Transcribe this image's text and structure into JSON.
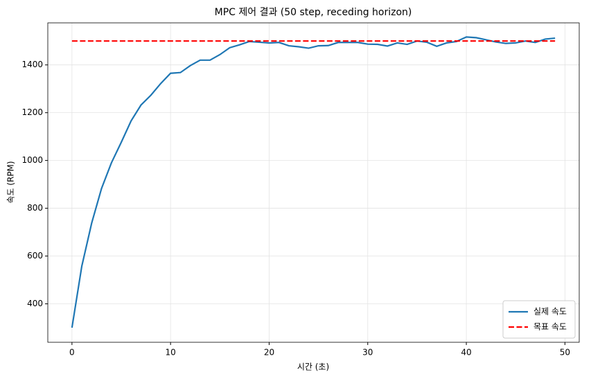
{
  "chart_data": {
    "type": "line",
    "title": "MPC 제어 결과 (50 step, receding horizon)",
    "x_label": "시간 (초)",
    "y_label": "속도 (RPM)",
    "x": [
      0,
      1,
      2,
      3,
      4,
      5,
      6,
      7,
      8,
      9,
      10,
      11,
      12,
      13,
      14,
      15,
      16,
      17,
      18,
      19,
      20,
      21,
      22,
      23,
      24,
      25,
      26,
      27,
      28,
      29,
      30,
      31,
      32,
      33,
      34,
      35,
      36,
      37,
      38,
      39,
      40,
      41,
      42,
      43,
      44,
      45,
      46,
      47,
      48,
      49
    ],
    "series": [
      {
        "name": "실제 속도",
        "color": "#1f77b4",
        "linestyle": "solid",
        "values": [
          300,
          558,
          738,
          883,
          990,
          1076,
          1166,
          1232,
          1273,
          1322,
          1365,
          1368,
          1397,
          1420,
          1420,
          1443,
          1472,
          1484,
          1498,
          1495,
          1492,
          1494,
          1480,
          1476,
          1470,
          1480,
          1481,
          1494,
          1494,
          1494,
          1487,
          1486,
          1479,
          1492,
          1486,
          1500,
          1495,
          1478,
          1492,
          1498,
          1517,
          1514,
          1505,
          1496,
          1490,
          1492,
          1500,
          1494,
          1508,
          1512
        ]
      },
      {
        "name": "목표 속도",
        "color": "#ff0000",
        "linestyle": "dashed",
        "values": [
          1500,
          1500,
          1500,
          1500,
          1500,
          1500,
          1500,
          1500,
          1500,
          1500,
          1500,
          1500,
          1500,
          1500,
          1500,
          1500,
          1500,
          1500,
          1500,
          1500,
          1500,
          1500,
          1500,
          1500,
          1500,
          1500,
          1500,
          1500,
          1500,
          1500,
          1500,
          1500,
          1500,
          1500,
          1500,
          1500,
          1500,
          1500,
          1500,
          1500,
          1500,
          1500,
          1500,
          1500,
          1500,
          1500,
          1500,
          1500,
          1500,
          1500
        ]
      }
    ],
    "xlim": [
      -2.45,
      51.45
    ],
    "xticks": [
      0,
      10,
      20,
      30,
      40,
      50
    ],
    "ylim": [
      239,
      1576
    ],
    "yticks": [
      400,
      600,
      800,
      1000,
      1200,
      1400
    ],
    "grid": true,
    "legend": "lower right"
  }
}
